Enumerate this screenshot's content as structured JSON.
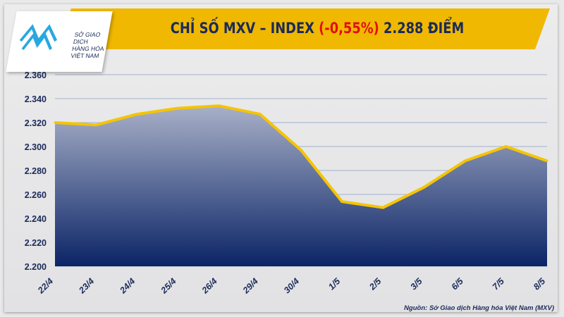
{
  "header": {
    "title_prefix": "CHỈ SỐ MXV – INDEX ",
    "title_change": "(-0,55%)",
    "title_suffix": " 2.288 ĐIỂM"
  },
  "logo": {
    "line1": "SỞ GIAO DỊCH",
    "line2": "HÀNG HÓA",
    "line3": "VIỆT NAM"
  },
  "source": "Nguồn: Sở Giao dịch Hàng hóa Việt Nam (MXV)",
  "colors": {
    "banner": "#f0b800",
    "line": "#f5c400",
    "area_top": "#a8b0c8",
    "area_bottom": "#0b2466",
    "negative": "#e01010"
  },
  "chart_data": {
    "type": "area",
    "title": "CHỈ SỐ MXV – INDEX (-0,55%) 2.288 ĐIỂM",
    "categories": [
      "22/4",
      "23/4",
      "24/4",
      "25/4",
      "26/4",
      "29/4",
      "30/4",
      "1/5",
      "2/5",
      "3/5",
      "6/5",
      "7/5",
      "8/5"
    ],
    "values": [
      2320,
      2318,
      2327,
      2332,
      2334,
      2327,
      2297,
      2254,
      2249,
      2266,
      2288,
      2300,
      2288
    ],
    "ylim": [
      2200,
      2360
    ],
    "yticks": [
      "2.200",
      "2.220",
      "2.240",
      "2.260",
      "2.280",
      "2.300",
      "2.320",
      "2.340",
      "2.360"
    ],
    "grid": true
  }
}
